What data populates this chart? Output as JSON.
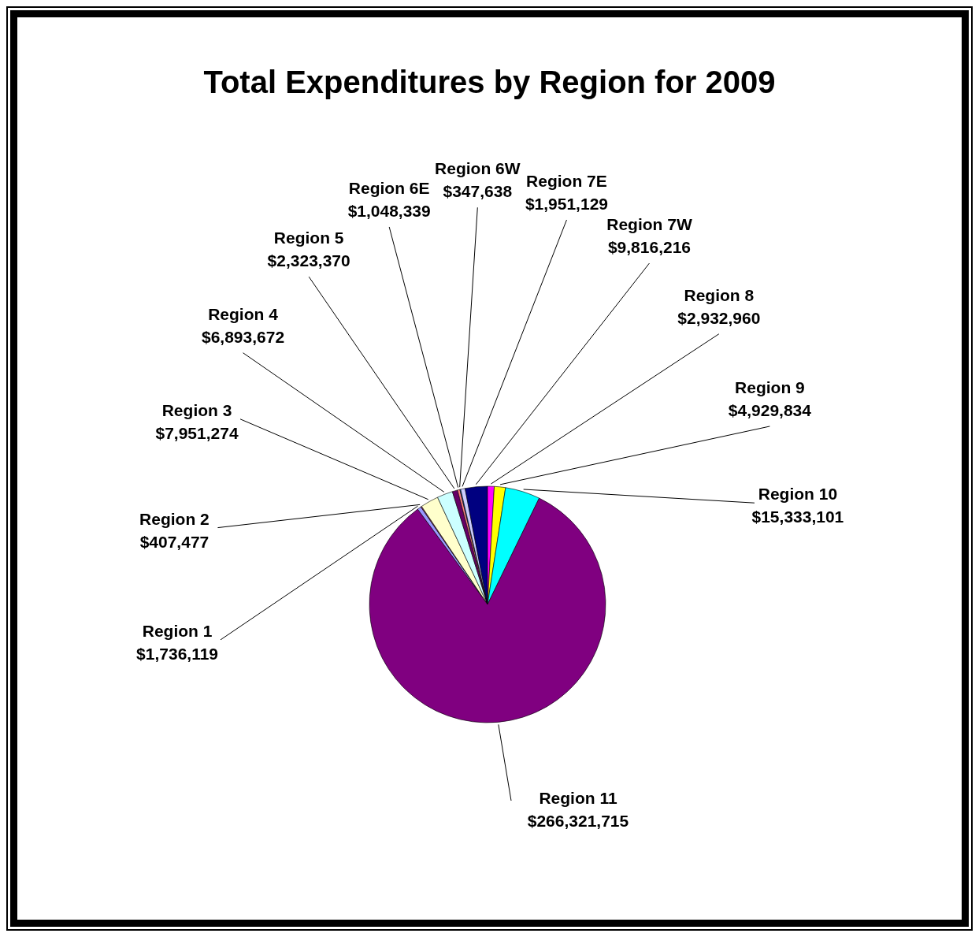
{
  "chart_data": {
    "type": "pie",
    "title": "Total Expenditures by Region for 2009",
    "categories": [
      "Region 1",
      "Region 2",
      "Region 3",
      "Region 4",
      "Region 5",
      "Region 6E",
      "Region 6W",
      "Region 7E",
      "Region 7W",
      "Region 8",
      "Region 9",
      "Region 10",
      "Region 11"
    ],
    "values": [
      1736119,
      407477,
      7951274,
      6893672,
      2323370,
      1048339,
      347638,
      1951129,
      9816216,
      2932960,
      4929834,
      15333101,
      266321715
    ],
    "colors": [
      "#9999ff",
      "#993366",
      "#ffffcc",
      "#ccffff",
      "#660066",
      "#ff8080",
      "#0066cc",
      "#ccccff",
      "#000080",
      "#ff00ff",
      "#ffff00",
      "#00ffff",
      "#800080"
    ],
    "value_labels": [
      "$1,736,119",
      "$407,477",
      "$7,951,274",
      "$6,893,672",
      "$2,323,370",
      "$1,048,339",
      "$347,638",
      "$1,951,129",
      "$9,816,216",
      "$2,932,960",
      "$4,929,834",
      "$15,333,101",
      "$266,321,715"
    ]
  }
}
